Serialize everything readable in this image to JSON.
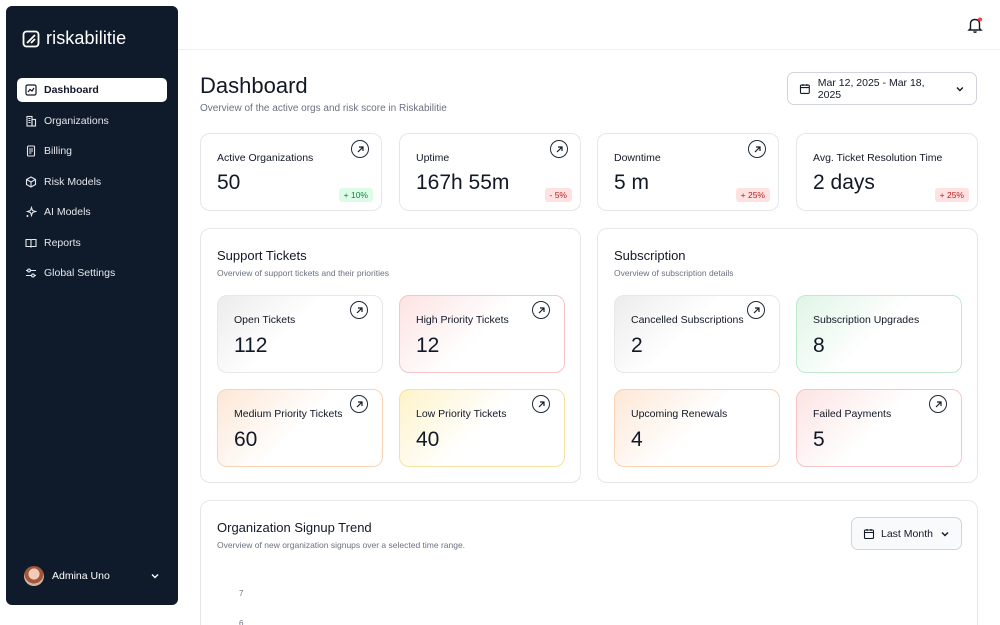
{
  "app": {
    "name": "riskabilitie"
  },
  "sidebar": {
    "items": [
      {
        "label": "Dashboard",
        "icon": "chart-line-icon",
        "active": true
      },
      {
        "label": "Organizations",
        "icon": "building-icon"
      },
      {
        "label": "Billing",
        "icon": "receipt-icon"
      },
      {
        "label": "Risk Models",
        "icon": "cube-icon"
      },
      {
        "label": "AI Models",
        "icon": "sparkles-icon"
      },
      {
        "label": "Reports",
        "icon": "book-open-icon"
      },
      {
        "label": "Global Settings",
        "icon": "sliders-icon"
      }
    ],
    "user": {
      "name": "Admina Uno"
    }
  },
  "header": {
    "title": "Dashboard",
    "subtitle": "Overview of the active orgs and risk score in Riskabilitie",
    "date_range": "Mar 12, 2025 - Mar 18, 2025"
  },
  "stats": [
    {
      "label": "Active Organizations",
      "value": "50",
      "change": "+ 10%",
      "trend": "up"
    },
    {
      "label": "Uptime",
      "value": "167h 55m",
      "change": "- 5%",
      "trend": "down"
    },
    {
      "label": "Downtime",
      "value": "5 m",
      "change": "+ 25%",
      "trend": "down"
    },
    {
      "label": "Avg. Ticket Resolution Time",
      "value": "2 days",
      "change": "+ 25%",
      "trend": "down"
    }
  ],
  "support": {
    "title": "Support Tickets",
    "subtitle": "Overview of support tickets and their priorities",
    "tiles": [
      {
        "label": "Open Tickets",
        "value": "112"
      },
      {
        "label": "High Priority Tickets",
        "value": "12"
      },
      {
        "label": "Medium Priority Tickets",
        "value": "60"
      },
      {
        "label": "Low Priority Tickets",
        "value": "40"
      }
    ]
  },
  "subscription": {
    "title": "Subscription",
    "subtitle": "Overview of subscription details",
    "tiles": [
      {
        "label": "Cancelled Subscriptions",
        "value": "2"
      },
      {
        "label": "Subscription Upgrades",
        "value": "8"
      },
      {
        "label": "Upcoming Renewals",
        "value": "4"
      },
      {
        "label": "Failed Payments",
        "value": "5"
      }
    ]
  },
  "trend": {
    "title": "Organization Signup Trend",
    "subtitle": "Overview of new organization signups over a selected time range.",
    "range": "Last Month",
    "y_ticks": [
      "7",
      "6"
    ]
  },
  "colors": {
    "sidebar_bg": "#0f1a2b",
    "up_badge": "#dcfce7",
    "down_badge": "#fee2e2"
  }
}
